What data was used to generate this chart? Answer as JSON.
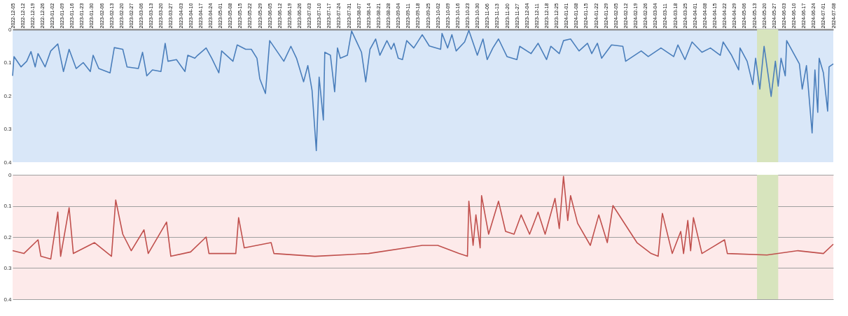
{
  "chart_data": [
    {
      "type": "line",
      "xlim": [
        "2022-12-05",
        "2024-07-08"
      ],
      "xticks": [
        "2022-12-05",
        "2022-12-12",
        "2022-12-19",
        "2022-12-26",
        "2023-01-02",
        "2023-01-09",
        "2023-01-16",
        "2023-01-23",
        "2023-01-30",
        "2023-02-06",
        "2023-02-13",
        "2023-02-20",
        "2023-02-27",
        "2023-03-06",
        "2023-03-13",
        "2023-03-20",
        "2023-03-27",
        "2023-04-03",
        "2023-04-10",
        "2023-04-17",
        "2023-04-24",
        "2023-05-01",
        "2023-05-08",
        "2023-05-15",
        "2023-05-22",
        "2023-05-29",
        "2023-06-05",
        "2023-06-12",
        "2023-06-19",
        "2023-06-26",
        "2023-07-03",
        "2023-07-10",
        "2023-07-17",
        "2023-07-24",
        "2023-07-31",
        "2023-08-07",
        "2023-08-14",
        "2023-08-21",
        "2023-08-28",
        "2023-09-04",
        "2023-09-11",
        "2023-09-18",
        "2023-09-25",
        "2023-10-02",
        "2023-10-09",
        "2023-10-16",
        "2023-10-23",
        "2023-10-30",
        "2023-11-06",
        "2023-11-13",
        "2023-11-20",
        "2023-11-27",
        "2023-12-04",
        "2023-12-11",
        "2023-12-18",
        "2023-12-25",
        "2024-01-01",
        "2024-01-08",
        "2024-01-15",
        "2024-01-22",
        "2024-01-29",
        "2024-02-05",
        "2024-02-12",
        "2024-02-19",
        "2024-02-26",
        "2024-03-04",
        "2024-03-11",
        "2024-03-18",
        "2024-03-25",
        "2024-04-01",
        "2024-04-08",
        "2024-04-15",
        "2024-04-22",
        "2024-04-29",
        "2024-05-06",
        "2024-05-13",
        "2024-05-20",
        "2024-05-27",
        "2024-06-03",
        "2024-06-10",
        "2024-06-17",
        "2024-06-24",
        "2024-07-01",
        "2024-07-08"
      ],
      "ylim": [
        0.4,
        0
      ],
      "yticks": [
        0,
        0.1,
        0.2,
        0.3,
        0.4
      ],
      "bands": [
        {
          "axis": "x",
          "from": "2024-05-15",
          "to": "2024-05-30",
          "color": "#d7e4bd"
        }
      ],
      "series": [
        {
          "color": "#4a7ebb",
          "x": [
            "2022-12-05",
            "2022-12-06",
            "2022-12-11",
            "2022-12-15",
            "2022-12-18",
            "2022-12-21",
            "2022-12-23",
            "2022-12-28",
            "2023-01-01",
            "2023-01-06",
            "2023-01-10",
            "2023-01-14",
            "2023-01-19",
            "2023-01-24",
            "2023-01-29",
            "2023-01-31",
            "2023-02-04",
            "2023-02-12",
            "2023-02-15",
            "2023-02-21",
            "2023-02-24",
            "2023-03-04",
            "2023-03-07",
            "2023-03-10",
            "2023-03-14",
            "2023-03-20",
            "2023-03-23",
            "2023-03-25",
            "2023-03-31",
            "2023-04-06",
            "2023-04-08",
            "2023-04-13",
            "2023-04-15",
            "2023-04-21",
            "2023-04-25",
            "2023-04-30",
            "2023-05-02",
            "2023-05-10",
            "2023-05-13",
            "2023-05-19",
            "2023-05-23",
            "2023-05-27",
            "2023-05-29",
            "2023-06-02",
            "2023-06-05",
            "2023-06-15",
            "2023-06-20",
            "2023-06-24",
            "2023-06-29",
            "2023-07-02",
            "2023-07-05",
            "2023-07-08",
            "2023-07-10",
            "2023-07-13",
            "2023-07-14",
            "2023-07-18",
            "2023-07-21",
            "2023-07-23",
            "2023-07-25",
            "2023-07-30",
            "2023-08-02",
            "2023-08-09",
            "2023-08-12",
            "2023-08-15",
            "2023-08-19",
            "2023-08-22",
            "2023-08-27",
            "2023-08-30",
            "2023-09-01",
            "2023-09-04",
            "2023-09-07",
            "2023-09-10",
            "2023-09-15",
            "2023-09-21",
            "2023-09-26",
            "2023-10-04",
            "2023-10-05",
            "2023-10-09",
            "2023-10-12",
            "2023-10-15",
            "2023-10-21",
            "2023-10-24",
            "2023-10-30",
            "2023-11-03",
            "2023-11-06",
            "2023-11-10",
            "2023-11-14",
            "2023-11-20",
            "2023-11-27",
            "2023-11-29",
            "2023-12-07",
            "2023-12-12",
            "2023-12-18",
            "2023-12-21",
            "2023-12-27",
            "2023-12-30",
            "2024-01-04",
            "2024-01-10",
            "2024-01-16",
            "2024-01-19",
            "2024-01-23",
            "2024-01-26",
            "2024-02-02",
            "2024-02-10",
            "2024-02-12",
            "2024-02-23",
            "2024-02-28",
            "2024-03-08",
            "2024-03-17",
            "2024-03-20",
            "2024-03-25",
            "2024-03-30",
            "2024-04-06",
            "2024-04-12",
            "2024-04-19",
            "2024-04-21",
            "2024-04-27",
            "2024-05-02",
            "2024-05-03",
            "2024-05-08",
            "2024-05-12",
            "2024-05-14",
            "2024-05-17",
            "2024-05-20",
            "2024-05-25",
            "2024-05-28",
            "2024-05-30",
            "2024-06-01",
            "2024-06-04",
            "2024-06-05",
            "2024-06-10",
            "2024-06-14",
            "2024-06-16",
            "2024-06-19",
            "2024-06-23",
            "2024-06-25",
            "2024-06-27",
            "2024-06-28",
            "2024-07-01",
            "2024-07-04",
            "2024-07-05",
            "2024-07-08"
          ],
          "values": [
            0.14,
            0.082,
            0.113,
            0.096,
            0.067,
            0.113,
            0.073,
            0.113,
            0.065,
            0.044,
            0.127,
            0.06,
            0.118,
            0.1,
            0.127,
            0.078,
            0.118,
            0.131,
            0.055,
            0.06,
            0.113,
            0.118,
            0.069,
            0.14,
            0.122,
            0.127,
            0.042,
            0.096,
            0.091,
            0.127,
            0.078,
            0.087,
            0.078,
            0.056,
            0.087,
            0.131,
            0.065,
            0.096,
            0.047,
            0.06,
            0.06,
            0.087,
            0.149,
            0.193,
            0.034,
            0.096,
            0.051,
            0.087,
            0.158,
            0.109,
            0.184,
            0.365,
            0.144,
            0.273,
            0.069,
            0.078,
            0.188,
            0.056,
            0.087,
            0.078,
            0.005,
            0.069,
            0.158,
            0.06,
            0.029,
            0.078,
            0.034,
            0.06,
            0.042,
            0.087,
            0.091,
            0.034,
            0.056,
            0.016,
            0.05,
            0.06,
            0.012,
            0.056,
            0.016,
            0.065,
            0.038,
            0.003,
            0.078,
            0.029,
            0.091,
            0.056,
            0.029,
            0.082,
            0.091,
            0.051,
            0.073,
            0.042,
            0.091,
            0.051,
            0.073,
            0.034,
            0.029,
            0.065,
            0.042,
            0.073,
            0.042,
            0.087,
            0.047,
            0.051,
            0.096,
            0.065,
            0.082,
            0.056,
            0.082,
            0.047,
            0.091,
            0.038,
            0.069,
            0.056,
            0.078,
            0.038,
            0.078,
            0.122,
            0.056,
            0.096,
            0.166,
            0.087,
            0.18,
            0.051,
            0.202,
            0.096,
            0.171,
            0.087,
            0.14,
            0.034,
            0.073,
            0.104,
            0.18,
            0.109,
            0.312,
            0.122,
            0.25,
            0.087,
            0.131,
            0.246,
            0.113,
            0.104
          ]
        }
      ]
    },
    {
      "type": "line",
      "xlim": [
        "2022-12-05",
        "2024-07-08"
      ],
      "tick_labels": "y",
      "grid": "y",
      "ylim": [
        0.4,
        0
      ],
      "yticks": [
        0,
        0.1,
        0.2,
        0.3,
        0.4
      ],
      "bands": [
        {
          "axis": "x",
          "from": "2024-05-15",
          "to": "2024-05-30",
          "color": "#d7e4bd"
        }
      ],
      "series": [
        {
          "color": "#c0504d",
          "x": [
            "2022-12-05",
            "2022-12-13",
            "2022-12-23",
            "2022-12-25",
            "2023-01-01",
            "2023-01-06",
            "2023-01-08",
            "2023-01-14",
            "2023-01-17",
            "2023-02-01",
            "2023-02-13",
            "2023-02-16",
            "2023-02-21",
            "2023-02-27",
            "2023-03-08",
            "2023-03-11",
            "2023-03-24",
            "2023-03-27",
            "2023-04-10",
            "2023-04-21",
            "2023-04-23",
            "2023-05-12",
            "2023-05-14",
            "2023-05-18",
            "2023-06-06",
            "2023-06-08",
            "2023-07-07",
            "2023-08-14",
            "2023-09-21",
            "2023-10-02",
            "2023-10-17",
            "2023-10-23",
            "2023-10-24",
            "2023-10-27",
            "2023-10-29",
            "2023-11-01",
            "2023-11-02",
            "2023-11-07",
            "2023-11-14",
            "2023-11-19",
            "2023-11-25",
            "2023-11-30",
            "2023-12-06",
            "2023-12-12",
            "2023-12-17",
            "2023-12-24",
            "2023-12-27",
            "2023-12-30",
            "2024-01-02",
            "2024-01-04",
            "2024-01-09",
            "2024-01-18",
            "2024-01-24",
            "2024-01-30",
            "2024-02-03",
            "2024-02-20",
            "2024-03-01",
            "2024-03-06",
            "2024-03-09",
            "2024-03-16",
            "2024-03-22",
            "2024-03-24",
            "2024-03-27",
            "2024-03-29",
            "2024-03-31",
            "2024-04-06",
            "2024-04-22",
            "2024-04-24",
            "2024-05-22",
            "2024-06-13",
            "2024-07-01",
            "2024-07-08"
          ],
          "values": [
            0.244,
            0.253,
            0.209,
            0.262,
            0.271,
            0.12,
            0.262,
            0.106,
            0.253,
            0.218,
            0.262,
            0.081,
            0.191,
            0.244,
            0.177,
            0.253,
            0.152,
            0.262,
            0.248,
            0.2,
            0.253,
            0.253,
            0.138,
            0.235,
            0.218,
            0.253,
            0.262,
            0.253,
            0.227,
            0.227,
            0.253,
            0.262,
            0.085,
            0.227,
            0.129,
            0.235,
            0.067,
            0.191,
            0.085,
            0.182,
            0.191,
            0.129,
            0.191,
            0.12,
            0.191,
            0.076,
            0.173,
            0.005,
            0.147,
            0.067,
            0.156,
            0.227,
            0.129,
            0.218,
            0.099,
            0.218,
            0.253,
            0.262,
            0.124,
            0.253,
            0.182,
            0.253,
            0.147,
            0.244,
            0.138,
            0.253,
            0.209,
            0.253,
            0.258,
            0.244,
            0.253,
            0.223
          ]
        }
      ]
    }
  ]
}
